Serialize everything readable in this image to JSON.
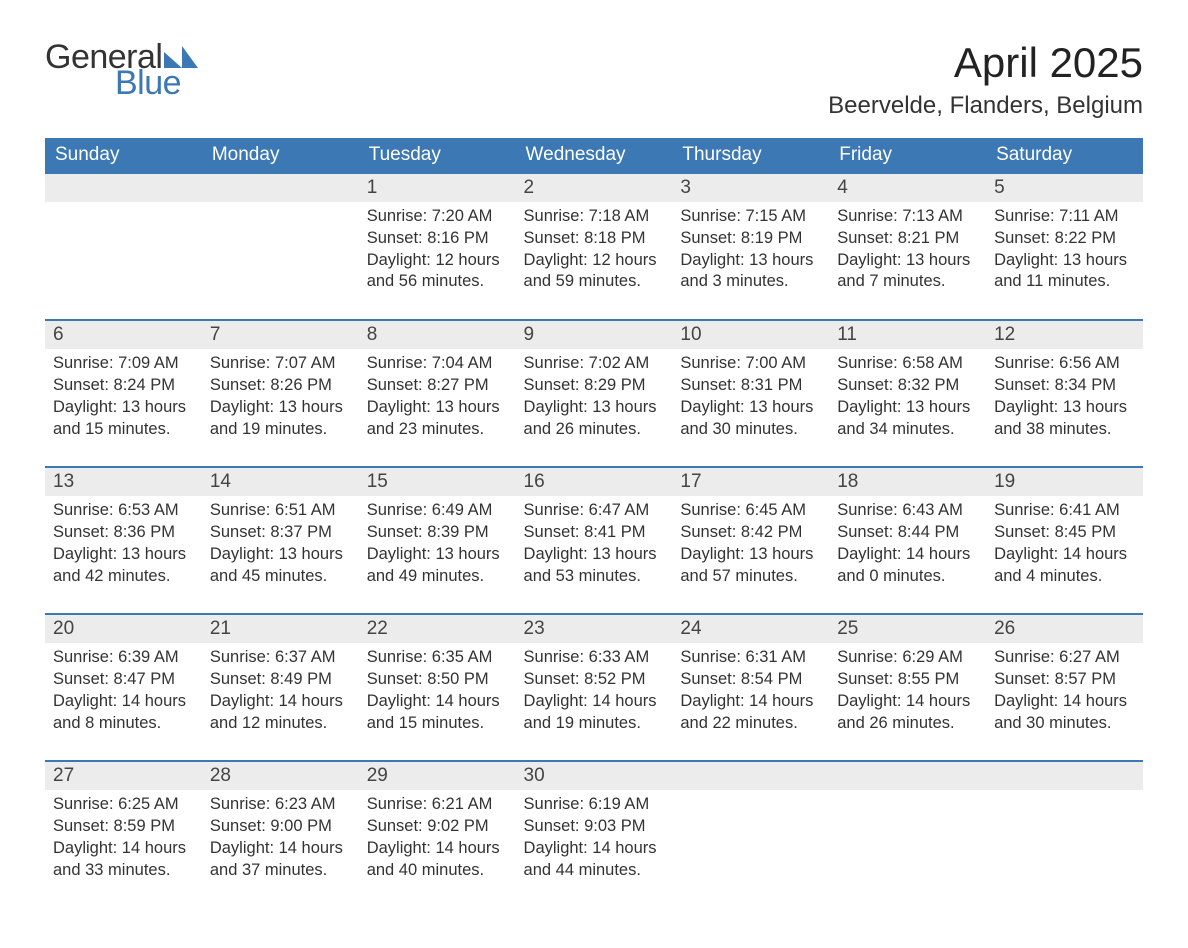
{
  "brand": {
    "text_general": "General",
    "text_blue": "Blue",
    "icon_color": "#3c78b4",
    "general_color": "#333333"
  },
  "title": {
    "month": "April 2025",
    "location": "Beervelde, Flanders, Belgium",
    "month_fontsize": 42,
    "location_fontsize": 24
  },
  "colors": {
    "header_bg": "#3c78b4",
    "header_text": "#ffffff",
    "band_bg": "#ececec",
    "text": "#333333",
    "week_border": "#3c78b4",
    "background": "#ffffff"
  },
  "typography": {
    "day_header_fontsize": 19,
    "daynum_fontsize": 19,
    "body_fontsize": 16.5,
    "font_family": "Segoe UI"
  },
  "day_headers": [
    "Sunday",
    "Monday",
    "Tuesday",
    "Wednesday",
    "Thursday",
    "Friday",
    "Saturday"
  ],
  "weeks": [
    [
      null,
      null,
      {
        "n": "1",
        "sunrise": "7:20 AM",
        "sunset": "8:16 PM",
        "daylight": "12 hours and 56 minutes."
      },
      {
        "n": "2",
        "sunrise": "7:18 AM",
        "sunset": "8:18 PM",
        "daylight": "12 hours and 59 minutes."
      },
      {
        "n": "3",
        "sunrise": "7:15 AM",
        "sunset": "8:19 PM",
        "daylight": "13 hours and 3 minutes."
      },
      {
        "n": "4",
        "sunrise": "7:13 AM",
        "sunset": "8:21 PM",
        "daylight": "13 hours and 7 minutes."
      },
      {
        "n": "5",
        "sunrise": "7:11 AM",
        "sunset": "8:22 PM",
        "daylight": "13 hours and 11 minutes."
      }
    ],
    [
      {
        "n": "6",
        "sunrise": "7:09 AM",
        "sunset": "8:24 PM",
        "daylight": "13 hours and 15 minutes."
      },
      {
        "n": "7",
        "sunrise": "7:07 AM",
        "sunset": "8:26 PM",
        "daylight": "13 hours and 19 minutes."
      },
      {
        "n": "8",
        "sunrise": "7:04 AM",
        "sunset": "8:27 PM",
        "daylight": "13 hours and 23 minutes."
      },
      {
        "n": "9",
        "sunrise": "7:02 AM",
        "sunset": "8:29 PM",
        "daylight": "13 hours and 26 minutes."
      },
      {
        "n": "10",
        "sunrise": "7:00 AM",
        "sunset": "8:31 PM",
        "daylight": "13 hours and 30 minutes."
      },
      {
        "n": "11",
        "sunrise": "6:58 AM",
        "sunset": "8:32 PM",
        "daylight": "13 hours and 34 minutes."
      },
      {
        "n": "12",
        "sunrise": "6:56 AM",
        "sunset": "8:34 PM",
        "daylight": "13 hours and 38 minutes."
      }
    ],
    [
      {
        "n": "13",
        "sunrise": "6:53 AM",
        "sunset": "8:36 PM",
        "daylight": "13 hours and 42 minutes."
      },
      {
        "n": "14",
        "sunrise": "6:51 AM",
        "sunset": "8:37 PM",
        "daylight": "13 hours and 45 minutes."
      },
      {
        "n": "15",
        "sunrise": "6:49 AM",
        "sunset": "8:39 PM",
        "daylight": "13 hours and 49 minutes."
      },
      {
        "n": "16",
        "sunrise": "6:47 AM",
        "sunset": "8:41 PM",
        "daylight": "13 hours and 53 minutes."
      },
      {
        "n": "17",
        "sunrise": "6:45 AM",
        "sunset": "8:42 PM",
        "daylight": "13 hours and 57 minutes."
      },
      {
        "n": "18",
        "sunrise": "6:43 AM",
        "sunset": "8:44 PM",
        "daylight": "14 hours and 0 minutes."
      },
      {
        "n": "19",
        "sunrise": "6:41 AM",
        "sunset": "8:45 PM",
        "daylight": "14 hours and 4 minutes."
      }
    ],
    [
      {
        "n": "20",
        "sunrise": "6:39 AM",
        "sunset": "8:47 PM",
        "daylight": "14 hours and 8 minutes."
      },
      {
        "n": "21",
        "sunrise": "6:37 AM",
        "sunset": "8:49 PM",
        "daylight": "14 hours and 12 minutes."
      },
      {
        "n": "22",
        "sunrise": "6:35 AM",
        "sunset": "8:50 PM",
        "daylight": "14 hours and 15 minutes."
      },
      {
        "n": "23",
        "sunrise": "6:33 AM",
        "sunset": "8:52 PM",
        "daylight": "14 hours and 19 minutes."
      },
      {
        "n": "24",
        "sunrise": "6:31 AM",
        "sunset": "8:54 PM",
        "daylight": "14 hours and 22 minutes."
      },
      {
        "n": "25",
        "sunrise": "6:29 AM",
        "sunset": "8:55 PM",
        "daylight": "14 hours and 26 minutes."
      },
      {
        "n": "26",
        "sunrise": "6:27 AM",
        "sunset": "8:57 PM",
        "daylight": "14 hours and 30 minutes."
      }
    ],
    [
      {
        "n": "27",
        "sunrise": "6:25 AM",
        "sunset": "8:59 PM",
        "daylight": "14 hours and 33 minutes."
      },
      {
        "n": "28",
        "sunrise": "6:23 AM",
        "sunset": "9:00 PM",
        "daylight": "14 hours and 37 minutes."
      },
      {
        "n": "29",
        "sunrise": "6:21 AM",
        "sunset": "9:02 PM",
        "daylight": "14 hours and 40 minutes."
      },
      {
        "n": "30",
        "sunrise": "6:19 AM",
        "sunset": "9:03 PM",
        "daylight": "14 hours and 44 minutes."
      },
      null,
      null,
      null
    ]
  ],
  "labels": {
    "sunrise_prefix": "Sunrise: ",
    "sunset_prefix": "Sunset: ",
    "daylight_prefix": "Daylight: "
  }
}
